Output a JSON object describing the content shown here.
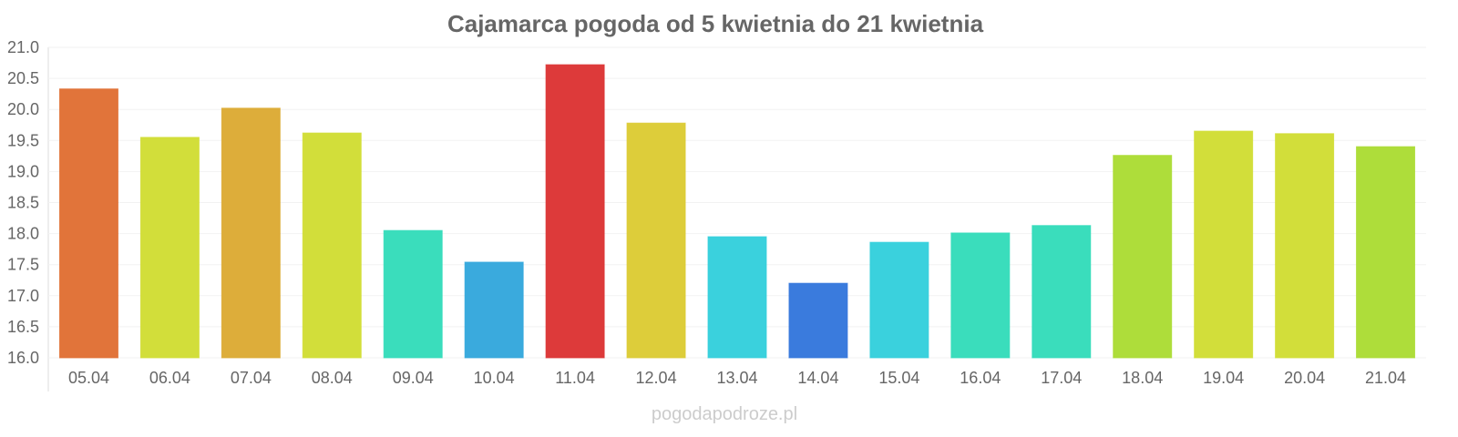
{
  "chart_data": {
    "type": "bar",
    "title": "Cajamarca pogoda od 5 kwietnia do 21 kwietnia",
    "xlabel": "",
    "ylabel": "",
    "ylim": [
      16.0,
      21.0
    ],
    "yticks": [
      "16.0",
      "16.5",
      "17.0",
      "17.5",
      "18.0",
      "18.5",
      "19.0",
      "19.5",
      "20.0",
      "20.5",
      "21.0"
    ],
    "grid": true,
    "categories": [
      "05.04",
      "06.04",
      "07.04",
      "08.04",
      "09.04",
      "10.04",
      "11.04",
      "12.04",
      "13.04",
      "14.04",
      "15.04",
      "16.04",
      "17.04",
      "18.04",
      "19.04",
      "20.04",
      "21.04"
    ],
    "values": [
      20.33,
      19.55,
      20.02,
      19.62,
      18.05,
      17.54,
      20.72,
      19.78,
      17.95,
      17.2,
      17.86,
      18.01,
      18.13,
      19.26,
      19.65,
      19.61,
      19.4
    ],
    "colors": [
      "#e07034",
      "#d1dd34",
      "#dcaa34",
      "#d1dd34",
      "#34dcba",
      "#34a7dc",
      "#dc3434",
      "#dccb34",
      "#34cfdc",
      "#3477dc",
      "#34cfdc",
      "#34dcba",
      "#34dcba",
      "#abdc34",
      "#d1dd34",
      "#d1dd34",
      "#abdc34"
    ]
  },
  "watermark": "pogodapodroze.pl"
}
